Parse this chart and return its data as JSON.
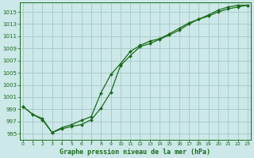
{
  "background_color": "#cce8e8",
  "grid_color": "#aacccc",
  "line_color": "#1a6b1a",
  "xlabel": "Graphe pression niveau de la mer (hPa)",
  "ylim": [
    994.0,
    1016.5
  ],
  "xlim": [
    -0.3,
    23.3
  ],
  "yticks": [
    995,
    997,
    999,
    1001,
    1003,
    1005,
    1007,
    1009,
    1011,
    1013,
    1015
  ],
  "xticks": [
    0,
    1,
    2,
    3,
    4,
    5,
    6,
    7,
    8,
    9,
    10,
    11,
    12,
    13,
    14,
    15,
    16,
    17,
    18,
    19,
    20,
    21,
    22,
    23
  ],
  "line1_x": [
    0,
    1,
    2,
    3,
    4,
    5,
    6,
    7,
    8,
    9,
    10,
    11,
    12,
    13,
    14,
    15,
    16,
    17,
    18,
    19,
    20,
    21,
    22,
    23
  ],
  "line1_y": [
    999.5,
    998.2,
    997.3,
    995.2,
    995.8,
    996.2,
    996.5,
    997.3,
    999.2,
    1001.8,
    1006.2,
    1007.8,
    1009.3,
    1009.8,
    1010.5,
    1011.2,
    1012.0,
    1013.0,
    1013.8,
    1014.3,
    1015.0,
    1015.5,
    1015.8,
    1016.1
  ],
  "line2_x": [
    0,
    1,
    2,
    3,
    4,
    5,
    6,
    7,
    8,
    9,
    10,
    11,
    12,
    13,
    14,
    15,
    16,
    17,
    18,
    19,
    20,
    21,
    22,
    23
  ],
  "line2_y": [
    999.5,
    998.2,
    997.5,
    995.2,
    996.0,
    996.5,
    997.2,
    997.8,
    1001.7,
    1004.7,
    1006.5,
    1008.5,
    1009.5,
    1010.2,
    1010.6,
    1011.4,
    1012.3,
    1013.2,
    1013.8,
    1014.5,
    1015.3,
    1015.8,
    1016.1,
    1016.1
  ]
}
